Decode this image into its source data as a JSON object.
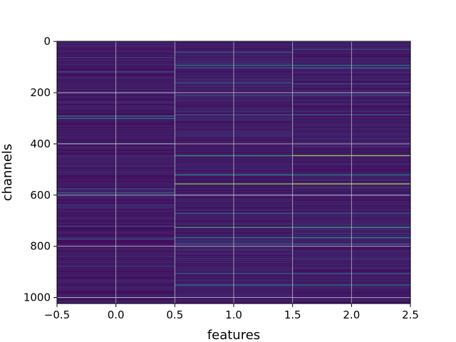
{
  "chart_data": {
    "type": "heatmap",
    "title": "",
    "xlabel": "features",
    "ylabel": "channels",
    "xlim": [
      -0.5,
      2.5
    ],
    "ylim": [
      1023.5,
      -0.5
    ],
    "x_ticks": [
      -0.5,
      0.0,
      0.5,
      1.0,
      1.5,
      2.0,
      2.5
    ],
    "x_tick_labels": [
      "−0.5",
      "0.0",
      "0.5",
      "1.0",
      "1.5",
      "2.0",
      "2.5"
    ],
    "y_ticks": [
      0,
      200,
      400,
      600,
      800,
      1000
    ],
    "y_tick_labels": [
      "0",
      "200",
      "400",
      "600",
      "800",
      "1000"
    ],
    "grid": true,
    "colormap": "viridis",
    "columns": [
      {
        "feature": 0,
        "x_range": [
          -0.5,
          0.5
        ],
        "background_level": 0.04,
        "highlight_rows": [
          {
            "channel": 62,
            "level": 0.2
          },
          {
            "channel": 118,
            "level": 0.28
          },
          {
            "channel": 200,
            "level": 0.22
          },
          {
            "channel": 290,
            "level": 0.42
          },
          {
            "channel": 300,
            "level": 0.38
          },
          {
            "channel": 398,
            "level": 0.3
          },
          {
            "channel": 575,
            "level": 0.28
          },
          {
            "channel": 590,
            "level": 0.34
          },
          {
            "channel": 720,
            "level": 0.22
          },
          {
            "channel": 770,
            "level": 0.26
          },
          {
            "channel": 1000,
            "level": 0.2
          }
        ]
      },
      {
        "feature": 1,
        "x_range": [
          0.5,
          1.5
        ],
        "background_level": 0.05,
        "highlight_rows": [
          {
            "channel": 40,
            "level": 0.26
          },
          {
            "channel": 92,
            "level": 0.45
          },
          {
            "channel": 102,
            "level": 0.3
          },
          {
            "channel": 160,
            "level": 0.24
          },
          {
            "channel": 210,
            "level": 0.22
          },
          {
            "channel": 285,
            "level": 0.3
          },
          {
            "channel": 445,
            "level": 0.55
          },
          {
            "channel": 520,
            "level": 0.45
          },
          {
            "channel": 555,
            "level": 0.78
          },
          {
            "channel": 600,
            "level": 0.3
          },
          {
            "channel": 670,
            "level": 0.28
          },
          {
            "channel": 725,
            "level": 0.62
          },
          {
            "channel": 765,
            "level": 0.45
          },
          {
            "channel": 790,
            "level": 0.35
          },
          {
            "channel": 905,
            "level": 0.3
          },
          {
            "channel": 950,
            "level": 0.4
          }
        ]
      },
      {
        "feature": 2,
        "x_range": [
          1.5,
          2.5
        ],
        "background_level": 0.05,
        "highlight_rows": [
          {
            "channel": 30,
            "level": 0.24
          },
          {
            "channel": 92,
            "level": 0.45
          },
          {
            "channel": 102,
            "level": 0.32
          },
          {
            "channel": 165,
            "level": 0.24
          },
          {
            "channel": 210,
            "level": 0.22
          },
          {
            "channel": 285,
            "level": 0.3
          },
          {
            "channel": 445,
            "level": 0.85
          },
          {
            "channel": 520,
            "level": 0.45
          },
          {
            "channel": 555,
            "level": 0.9
          },
          {
            "channel": 600,
            "level": 0.32
          },
          {
            "channel": 670,
            "level": 0.28
          },
          {
            "channel": 725,
            "level": 0.6
          },
          {
            "channel": 765,
            "level": 0.5
          },
          {
            "channel": 790,
            "level": 0.38
          },
          {
            "channel": 905,
            "level": 0.3
          },
          {
            "channel": 950,
            "level": 0.45
          }
        ]
      }
    ]
  }
}
